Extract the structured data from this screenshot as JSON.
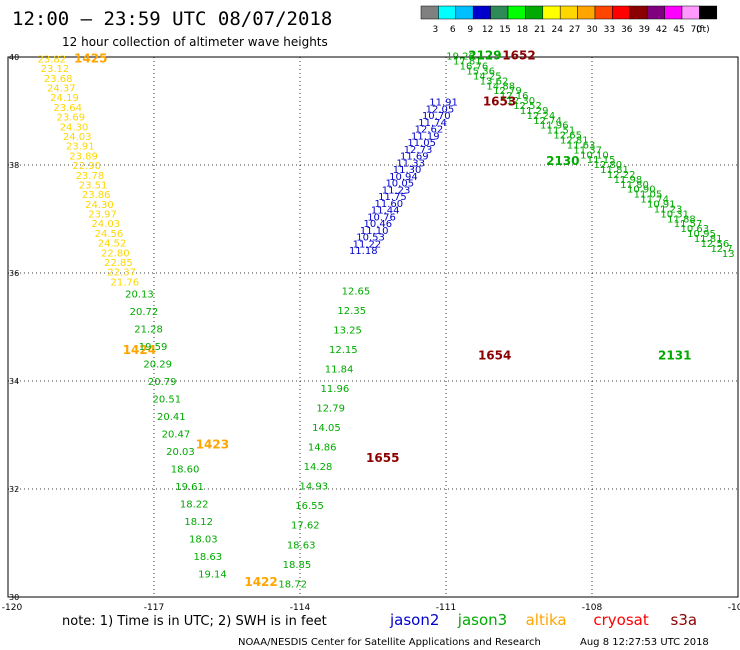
{
  "header": {
    "title": "12:00 – 23:59 UTC 08/07/2018",
    "subtitle": "12 hour collection of altimeter wave heights"
  },
  "colorbar": {
    "colors": [
      "#808080",
      "#00ffff",
      "#00bfff",
      "#0000cd",
      "#2e8b57",
      "#00ff00",
      "#00aa00",
      "#ffff00",
      "#ffd700",
      "#ffa500",
      "#ff4500",
      "#ff0000",
      "#8b0000",
      "#800080",
      "#ff00ff",
      "#ff99ff",
      "#000000"
    ],
    "labels": [
      "3",
      "6",
      "9",
      "12",
      "15",
      "18",
      "21",
      "24",
      "27",
      "30",
      "33",
      "36",
      "39",
      "42",
      "45",
      "70",
      "(ft)"
    ]
  },
  "footer": {
    "note": "note: 1) Time is in UTC; 2) SWH is in feet",
    "legend": [
      {
        "label": "jason2",
        "color": "#0000cc"
      },
      {
        "label": "jason3",
        "color": "#00aa00"
      },
      {
        "label": "altika",
        "color": "#ffa500"
      },
      {
        "label": "cryosat",
        "color": "#ff0000"
      },
      {
        "label": "s3a",
        "color": "#8b0000"
      }
    ],
    "credit": "NOAA/NESDIS Center for Satellite Applications and Research",
    "timestamp": "Aug  8 12:27:53 UTC 2018"
  },
  "chart_data": {
    "type": "scatter",
    "title": "12:00 – 23:59 UTC 08/07/2018",
    "subtitle": "12 hour collection of altimeter wave heights",
    "xlim": [
      -120,
      -105
    ],
    "ylim": [
      30,
      40
    ],
    "xticks": [
      "-120",
      "-117",
      "-114",
      "-111",
      "-108",
      "-105"
    ],
    "yticks": [
      "30",
      "32",
      "34",
      "36",
      "38",
      "40"
    ],
    "grid": true,
    "tracks": [
      {
        "name": "altika 1425",
        "color": "#ffd700",
        "label_color": "#ffa500",
        "time_label": {
          "text": "1425",
          "lon": -118.3,
          "lat": 39.9
        },
        "values": [
          "23.82",
          "23.12",
          "23.68",
          "24.37",
          "24.19",
          "23.64",
          "23.69",
          "24.30",
          "24.03",
          "23.91",
          "23.89",
          "22.90",
          "23.78",
          "23.51",
          "23.86",
          "24.30",
          "23.97",
          "24.03",
          "24.56",
          "24.52",
          "22.80",
          "22.85",
          "22.37",
          "21.76"
        ],
        "start": [
          -119.1,
          39.9
        ],
        "end": [
          -117.6,
          35.77
        ]
      },
      {
        "name": "altika 1424",
        "color": "#ffd700",
        "label_color": "#ffa500",
        "time_label": {
          "text": "1424",
          "lon": -117.3,
          "lat": 34.5
        },
        "values": [],
        "start": [
          0,
          0
        ],
        "end": [
          0,
          0
        ]
      },
      {
        "name": "altika 1423",
        "color": "#00aa00",
        "label_color": "#ffa500",
        "time_label": {
          "text": "1423",
          "lon": -115.8,
          "lat": 32.75
        },
        "values": [
          "20.13",
          "20.72",
          "21.28",
          "19.59",
          "20.29",
          "20.79",
          "20.51",
          "20.41",
          "20.47",
          "20.03",
          "18.60",
          "19.61",
          "18.22",
          "18.12",
          "18.03",
          "18.63",
          "19.14"
        ],
        "start": [
          -117.3,
          35.55
        ],
        "end": [
          -115.8,
          30.36
        ]
      },
      {
        "name": "altika 1422",
        "color": "#ffa500",
        "label_color": "#ffa500",
        "time_label": {
          "text": "1422",
          "lon": -114.8,
          "lat": 30.2
        },
        "values": [],
        "start": [
          0,
          0
        ],
        "end": [
          0,
          0
        ]
      },
      {
        "name": "jason3 1655 lower",
        "color": "#00aa00",
        "values": [
          "12.65",
          "12.35",
          "13.25",
          "12.15",
          "11.84",
          "11.96",
          "12.79",
          "14.05",
          "14.86",
          "14.28",
          "14.93",
          "16.55",
          "17.62",
          "18.63",
          "18.85",
          "18.72"
        ],
        "start": [
          -112.85,
          35.6
        ],
        "end": [
          -114.15,
          30.18
        ]
      },
      {
        "name": "jason2 ascending",
        "color": "#0000cc",
        "values": [
          "11.91",
          "12.05",
          "10.70",
          "11.74",
          "12.62",
          "11.19",
          "11.05",
          "12.73",
          "11.69",
          "11.33",
          "11.30",
          "10.94",
          "10.05",
          "11.23",
          "11.75",
          "11.60",
          "11.44",
          "10.76",
          "10.46",
          "11.10",
          "10.53",
          "11.22",
          "11.18"
        ],
        "start": [
          -111.05,
          39.1
        ],
        "end": [
          -112.7,
          36.35
        ]
      },
      {
        "name": "jason3 descending",
        "color": "#00aa00",
        "values": [
          "19.26",
          "17.81",
          "16.76",
          "15.36",
          "14.25",
          "13.62",
          "14.88",
          "12.79",
          "12.16",
          "12.30",
          "12.52",
          "11.29",
          "12.24",
          "12.74",
          "11.96",
          "11.51",
          "12.65",
          "12.81",
          "11.63",
          "11.37",
          "10.10",
          "11.15",
          "12.80",
          "11.81",
          "12.22",
          "11.98",
          "11.80",
          "10.90",
          "11.05",
          "11.74",
          "10.91",
          "11.23",
          "10.31",
          "11.88",
          "11.57",
          "10.63",
          "10.95",
          "11.81",
          "12.56",
          "12.7",
          "13"
        ],
        "start": [
          -110.7,
          39.95
        ],
        "end": [
          -105.2,
          36.3
        ]
      },
      {
        "name": "s3a 1652",
        "color": "#8b0000",
        "time_label": {
          "text": "1652",
          "lon": -109.5,
          "lat": 39.95
        },
        "values": [],
        "start": [
          0,
          0
        ],
        "end": [
          0,
          0
        ]
      },
      {
        "name": "s3a 1653",
        "color": "#8b0000",
        "time_label": {
          "text": "1653",
          "lon": -109.9,
          "lat": 39.1
        },
        "values": [],
        "start": [
          0,
          0
        ],
        "end": [
          0,
          0
        ]
      },
      {
        "name": "s3a 1654",
        "color": "#8b0000",
        "time_label": {
          "text": "1654",
          "lon": -110.0,
          "lat": 34.4
        },
        "values": [],
        "start": [
          0,
          0
        ],
        "end": [
          0,
          0
        ]
      },
      {
        "name": "s3a 1655",
        "color": "#8b0000",
        "time_label": {
          "text": "1655",
          "lon": -112.3,
          "lat": 32.5
        },
        "values": [],
        "start": [
          0,
          0
        ],
        "end": [
          0,
          0
        ]
      },
      {
        "name": "jason3 2129",
        "color": "#00aa00",
        "time_label": {
          "text": "2129",
          "lon": -110.2,
          "lat": 39.95
        },
        "values": [],
        "start": [
          0,
          0
        ],
        "end": [
          0,
          0
        ]
      },
      {
        "name": "jason3 2130",
        "color": "#00aa00",
        "time_label": {
          "text": "2130",
          "lon": -108.6,
          "lat": 38.0
        },
        "values": [],
        "start": [
          0,
          0
        ],
        "end": [
          0,
          0
        ]
      },
      {
        "name": "jason3 2131",
        "color": "#00aa00",
        "time_label": {
          "text": "2131",
          "lon": -106.3,
          "lat": 34.4
        },
        "values": [],
        "start": [
          0,
          0
        ],
        "end": [
          0,
          0
        ]
      }
    ]
  }
}
